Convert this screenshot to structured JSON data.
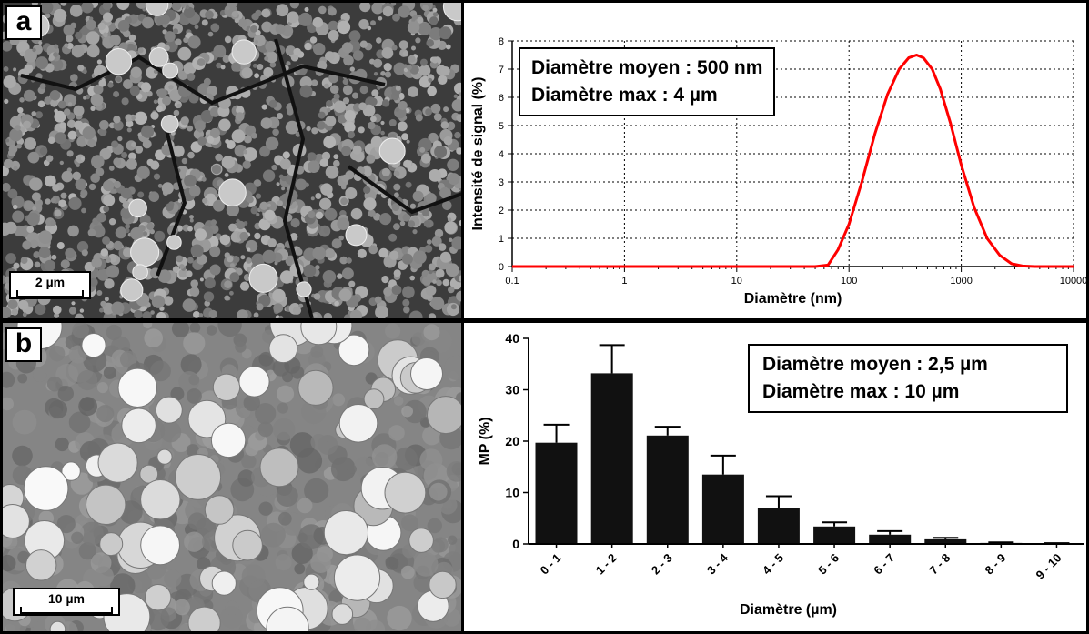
{
  "panels": {
    "a": {
      "label": "a",
      "scale_bar": "2 µm",
      "info": [
        "Diamètre moyen : 500 nm",
        "Diamètre max : 4 µm"
      ]
    },
    "b": {
      "label": "b",
      "scale_bar": "10 µm",
      "info": [
        "Diamètre moyen : 2,5 µm",
        "Diamètre max : 10 µm"
      ]
    }
  },
  "chart_data": [
    {
      "type": "line",
      "xscale": "log",
      "xlabel": "Diamètre (nm)",
      "ylabel": "Intensité de signal (%)",
      "xlim": [
        0.1,
        10000
      ],
      "ylim": [
        0,
        8
      ],
      "xticks": [
        "0.1",
        "1",
        "10",
        "100",
        "1000",
        "10000"
      ],
      "yticks": [
        "0",
        "1",
        "2",
        "3",
        "4",
        "5",
        "6",
        "7",
        "8"
      ],
      "grid": true,
      "color": "#ff0000",
      "series": [
        {
          "x": [
            0.1,
            1,
            10,
            50,
            65,
            80,
            100,
            130,
            170,
            220,
            280,
            340,
            400,
            460,
            550,
            650,
            800,
            1000,
            1300,
            1700,
            2200,
            2800,
            3500,
            4500,
            10000
          ],
          "y": [
            0,
            0,
            0,
            0,
            0.05,
            0.6,
            1.5,
            3.0,
            4.7,
            6.1,
            7.0,
            7.4,
            7.5,
            7.4,
            7.0,
            6.3,
            5.1,
            3.6,
            2.1,
            1.0,
            0.4,
            0.1,
            0.02,
            0,
            0
          ]
        }
      ]
    },
    {
      "type": "bar",
      "xlabel": "Diamètre (µm)",
      "ylabel": "MP (%)",
      "ylim": [
        0,
        40
      ],
      "yticks": [
        "0",
        "10",
        "20",
        "30",
        "40"
      ],
      "categories": [
        "0 - 1",
        "1 - 2",
        "2 - 3",
        "3 - 4",
        "4 - 5",
        "5 - 6",
        "6 - 7",
        "7 - 8",
        "8 - 9",
        "9 - 10"
      ],
      "values": [
        19.7,
        33.2,
        21.1,
        13.5,
        6.9,
        3.4,
        1.8,
        0.9,
        0.2,
        0.1
      ],
      "errors": [
        3.5,
        5.5,
        1.7,
        3.7,
        2.4,
        0.8,
        0.7,
        0.3,
        0.1,
        0.05
      ],
      "color": "#111111"
    }
  ]
}
